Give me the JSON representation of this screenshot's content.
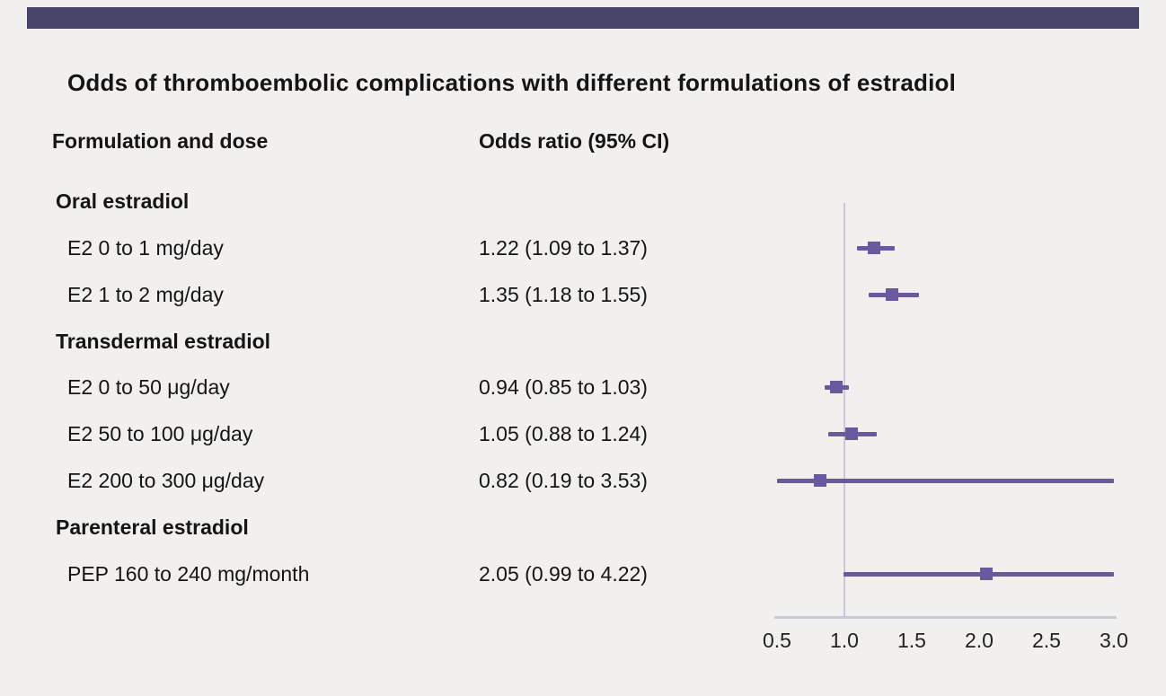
{
  "title": "Odds of thromboembolic complications with different formulations of estradiol",
  "columns": {
    "formulation": "Formulation and dose",
    "odds": "Odds ratio (95% CI)"
  },
  "colors": {
    "topbar": "#474569",
    "background": "#f1f0ee",
    "marker": "#6a599e",
    "reference_line": "#c9c7da",
    "axis_line": "#c9cbd4"
  },
  "chart_data": {
    "type": "forest",
    "title": "Odds of thromboembolic complications with different formulations of estradiol",
    "xlabel": "",
    "ylabel": "",
    "x_axis": {
      "range": [
        0.5,
        3.0
      ],
      "ticks": [
        "0.5",
        "1.0",
        "1.5",
        "2.0",
        "2.5",
        "3.0"
      ],
      "reference_value": 1.0
    },
    "rows": [
      {
        "kind": "group",
        "label": "Oral estradiol"
      },
      {
        "kind": "item",
        "label": "E2 0 to 1 mg/day",
        "or_text": "1.22 (1.09 to 1.37)",
        "or": 1.22,
        "ci_low": 1.09,
        "ci_high": 1.37
      },
      {
        "kind": "item",
        "label": "E2 1 to 2 mg/day",
        "or_text": "1.35 (1.18 to 1.55)",
        "or": 1.35,
        "ci_low": 1.18,
        "ci_high": 1.55
      },
      {
        "kind": "group",
        "label": "Transdermal estradiol"
      },
      {
        "kind": "item",
        "label": "E2 0 to 50 μg/day",
        "or_text": "0.94 (0.85 to 1.03)",
        "or": 0.94,
        "ci_low": 0.85,
        "ci_high": 1.03
      },
      {
        "kind": "item",
        "label": "E2 50 to 100 μg/day",
        "or_text": "1.05 (0.88 to 1.24)",
        "or": 1.05,
        "ci_low": 0.88,
        "ci_high": 1.24
      },
      {
        "kind": "item",
        "label": "E2 200 to 300 μg/day",
        "or_text": "0.82 (0.19 to 3.53)",
        "or": 0.82,
        "ci_low": 0.19,
        "ci_high": 3.53
      },
      {
        "kind": "group",
        "label": "Parenteral estradiol"
      },
      {
        "kind": "item",
        "label": "PEP 160 to 240 mg/month",
        "or_text": "2.05 (0.99 to 4.22)",
        "or": 2.05,
        "ci_low": 0.99,
        "ci_high": 4.22
      }
    ]
  }
}
